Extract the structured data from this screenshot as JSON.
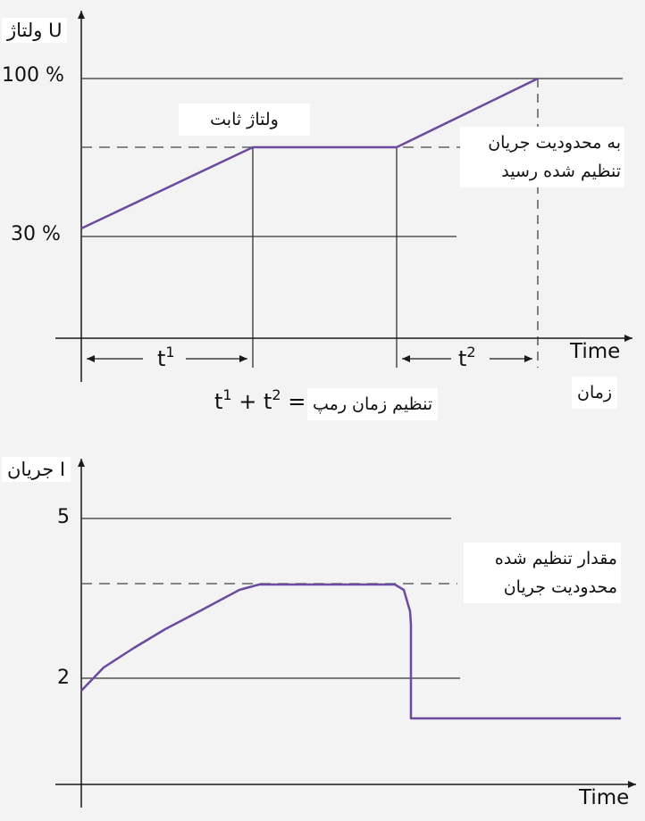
{
  "colors": {
    "curve": "#6a4ba0",
    "axis": "#1a1a1a",
    "guide": "#333333",
    "background": "#f3f3f3"
  },
  "top": {
    "y_axis_title": "U ولتاژ",
    "tick_100": "100 %",
    "tick_30": "30 %",
    "constant_voltage": "ولتاژ ثابت",
    "limit_reached_line1": "به  محدودیت جریان",
    "limit_reached_line2": "تنظیم شده رسید",
    "t1": "t",
    "t1_sup": "1",
    "t2": "t",
    "t2_sup": "2",
    "sum_a": "t",
    "sum_a_sup": "1",
    "sum_plus": " + t",
    "sum_b_sup": "2",
    "sum_eq": " =",
    "ramp_label": "تنظیم زمان رمپ",
    "time_en": "Time",
    "time_fa": "زمان"
  },
  "bottom": {
    "y_axis_title": "I جریان",
    "tick_5": "5",
    "tick_2": "2",
    "setting_line1": "مقدار تنظیم شده",
    "setting_line2": "محدودیت جریان",
    "time_en": "Time"
  }
}
